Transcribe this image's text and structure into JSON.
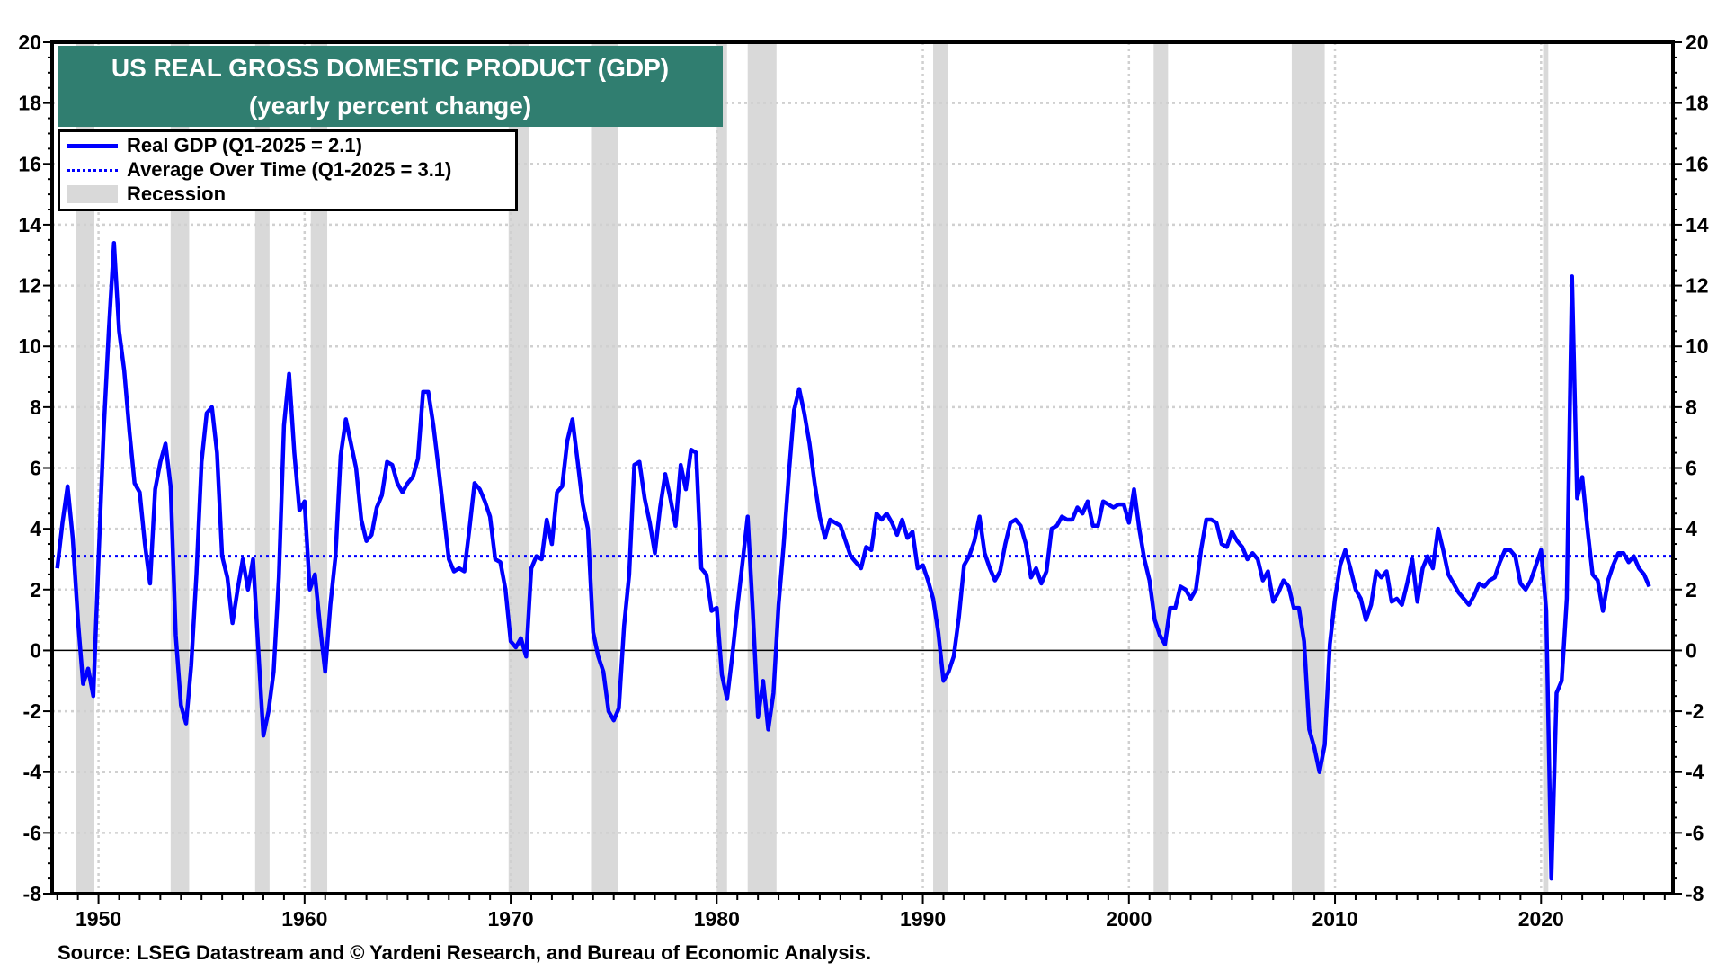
{
  "chart_data": {
    "type": "line",
    "title": "US REAL GROSS DOMESTIC PRODUCT (GDP)",
    "subtitle": "(yearly percent change)",
    "xlabel": "",
    "ylabel": "",
    "ylim": [
      -8,
      20
    ],
    "xlim": [
      1947.75,
      2026.4
    ],
    "y_ticks": [
      "20",
      "18",
      "16",
      "14",
      "12",
      "10",
      "8",
      "6",
      "4",
      "2",
      "0",
      "-2",
      "-4",
      "-6",
      "-8"
    ],
    "x_ticks": [
      "1950",
      "1960",
      "1970",
      "1980",
      "1990",
      "2000",
      "2010",
      "2020"
    ],
    "grid": true,
    "legend_placement": "top-left",
    "legend": [
      {
        "label": "Real GDP  (Q1-2025 = 2.1)",
        "style": "solid"
      },
      {
        "label": "Average Over Time  (Q1-2025 = 3.1)",
        "style": "dotted"
      },
      {
        "label": "Recession",
        "style": "shade"
      }
    ],
    "average": 3.1,
    "colors": {
      "line": "#0000ff",
      "recession": "#d9d9d9",
      "title_bg": "#307e70"
    },
    "recessions": [
      [
        1948.9,
        1949.8
      ],
      [
        1953.5,
        1954.4
      ],
      [
        1957.6,
        1958.3
      ],
      [
        1960.3,
        1961.1
      ],
      [
        1969.9,
        1970.9
      ],
      [
        1973.9,
        1975.2
      ],
      [
        1980.0,
        1980.5
      ],
      [
        1981.5,
        1982.9
      ],
      [
        1990.5,
        1991.2
      ],
      [
        2001.2,
        2001.9
      ],
      [
        2007.9,
        2009.5
      ],
      [
        2020.1,
        2020.35
      ]
    ],
    "series": [
      {
        "name": "Real GDP",
        "x0": 1948.0,
        "step": 0.25,
        "values": [
          2.7,
          4.2,
          5.4,
          3.7,
          1.0,
          -1.1,
          -0.6,
          -1.5,
          3.0,
          7.2,
          10.5,
          13.4,
          10.5,
          9.2,
          7.2,
          5.5,
          5.2,
          3.5,
          2.2,
          5.3,
          6.2,
          6.8,
          5.4,
          0.5,
          -1.8,
          -2.4,
          -0.5,
          2.5,
          6.2,
          7.8,
          8.0,
          6.5,
          3.1,
          2.4,
          0.9,
          2.0,
          3.0,
          2.0,
          3.0,
          0.1,
          -2.8,
          -2.0,
          -0.7,
          2.4,
          7.4,
          9.1,
          6.5,
          4.6,
          4.9,
          2.0,
          2.5,
          0.8,
          -0.7,
          1.5,
          3.1,
          6.4,
          7.6,
          6.8,
          6.0,
          4.3,
          3.6,
          3.8,
          4.7,
          5.1,
          6.2,
          6.1,
          5.5,
          5.2,
          5.5,
          5.7,
          6.3,
          8.5,
          8.5,
          7.4,
          6.0,
          4.5,
          3.0,
          2.6,
          2.7,
          2.6,
          4.0,
          5.5,
          5.3,
          4.9,
          4.4,
          3.0,
          2.9,
          2.0,
          0.3,
          0.1,
          0.4,
          -0.2,
          2.7,
          3.1,
          3.0,
          4.3,
          3.5,
          5.2,
          5.4,
          6.9,
          7.6,
          6.2,
          4.8,
          4.0,
          0.6,
          -0.2,
          -0.7,
          -2.0,
          -2.3,
          -1.9,
          0.8,
          2.5,
          6.1,
          6.2,
          5.0,
          4.2,
          3.2,
          4.7,
          5.8,
          5.0,
          4.1,
          6.1,
          5.3,
          6.6,
          6.5,
          2.7,
          2.5,
          1.3,
          1.4,
          -0.8,
          -1.6,
          -0.2,
          1.4,
          2.9,
          4.4,
          1.3,
          -2.2,
          -1.0,
          -2.6,
          -1.4,
          1.5,
          3.5,
          5.8,
          7.9,
          8.6,
          7.8,
          6.8,
          5.5,
          4.4,
          3.7,
          4.3,
          4.2,
          4.1,
          3.6,
          3.1,
          2.9,
          2.7,
          3.4,
          3.3,
          4.5,
          4.3,
          4.5,
          4.2,
          3.8,
          4.3,
          3.7,
          3.9,
          2.7,
          2.8,
          2.3,
          1.7,
          0.6,
          -1.0,
          -0.7,
          -0.2,
          1.1,
          2.8,
          3.1,
          3.6,
          4.4,
          3.2,
          2.7,
          2.3,
          2.6,
          3.5,
          4.2,
          4.3,
          4.1,
          3.5,
          2.4,
          2.7,
          2.2,
          2.6,
          4.0,
          4.1,
          4.4,
          4.3,
          4.3,
          4.7,
          4.5,
          4.9,
          4.1,
          4.1,
          4.9,
          4.8,
          4.7,
          4.8,
          4.8,
          4.2,
          5.3,
          4.0,
          3.0,
          2.3,
          1.0,
          0.5,
          0.2,
          1.4,
          1.4,
          2.1,
          2.0,
          1.7,
          2.0,
          3.3,
          4.3,
          4.3,
          4.2,
          3.5,
          3.4,
          3.9,
          3.6,
          3.4,
          3.0,
          3.2,
          3.0,
          2.3,
          2.6,
          1.6,
          1.9,
          2.3,
          2.1,
          1.4,
          1.4,
          0.3,
          -2.6,
          -3.2,
          -4.0,
          -3.1,
          0.2,
          1.7,
          2.8,
          3.3,
          2.7,
          2.0,
          1.7,
          1.0,
          1.5,
          2.6,
          2.4,
          2.6,
          1.6,
          1.7,
          1.5,
          2.2,
          3.0,
          1.6,
          2.7,
          3.1,
          2.7,
          4.0,
          3.3,
          2.5,
          2.2,
          1.9,
          1.7,
          1.5,
          1.8,
          2.2,
          2.1,
          2.3,
          2.4,
          2.9,
          3.3,
          3.3,
          3.1,
          2.2,
          2.0,
          2.3,
          2.8,
          3.3,
          1.3,
          -7.5,
          -1.4,
          -1.0,
          1.7,
          12.3,
          5.0,
          5.7,
          4.0,
          2.5,
          2.3,
          1.3,
          2.3,
          2.8,
          3.2,
          3.2,
          2.9,
          3.1,
          2.7,
          2.5,
          2.1
        ]
      }
    ]
  },
  "source": "Source: LSEG Datastream and © Yardeni Research, and Bureau of Economic Analysis."
}
